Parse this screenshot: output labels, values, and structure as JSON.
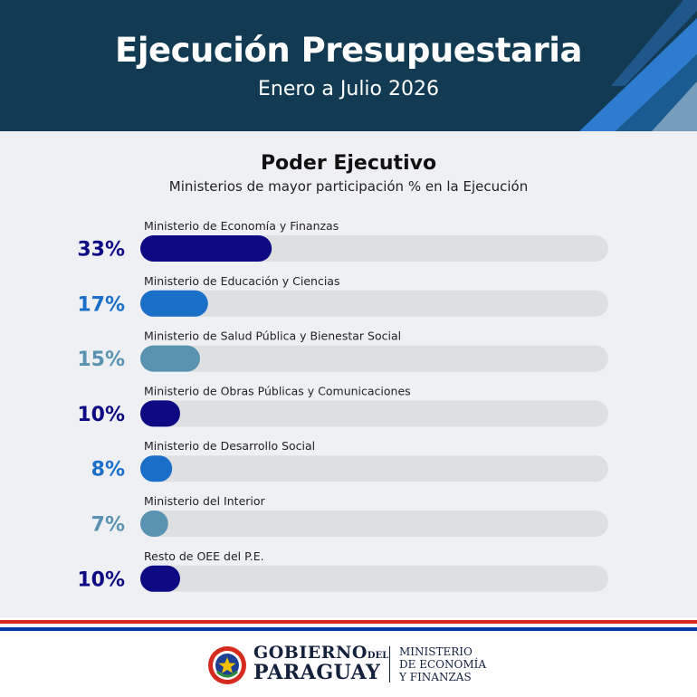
{
  "header": {
    "title": "Ejecución Presupuestaria",
    "subtitle": "Enero a Julio 2026"
  },
  "section": {
    "title": "Poder Ejecutivo",
    "subtitle": "Ministerios de mayor participación % en la Ejecución"
  },
  "chart_data": {
    "type": "bar",
    "orientation": "horizontal",
    "title": "Poder Ejecutivo",
    "subtitle": "Ministerios de mayor participación % en la Ejecución",
    "unit": "%",
    "xlim": [
      0,
      100
    ],
    "categories": [
      "Ministerio de Economía y Finanzas",
      "Ministerio de Educación y Ciencias",
      "Ministerio de Salud Pública y Bienestar Social",
      "Ministerio de Obras Públicas y Comunicaciones",
      "Ministerio de Desarrollo Social",
      "Ministerio del Interior",
      "Resto de OEE del P.E."
    ],
    "values": [
      33,
      17,
      15,
      10,
      8,
      7,
      10
    ],
    "value_labels": [
      "33%",
      "17%",
      "15%",
      "10%",
      "8%",
      "7%",
      "10%"
    ],
    "colors": [
      "#0d0a84",
      "#1a6fc8",
      "#5a92b2",
      "#0d0a84",
      "#1a6fc8",
      "#5a92b2",
      "#0d0a84"
    ],
    "track_color": "#dedfe1"
  },
  "footer": {
    "logo_line1": "GOBIERNO",
    "logo_line1_small": "DEL",
    "logo_line2": "PARAGUAY",
    "ministry_lines": [
      "MINISTERIO",
      "DE ECONOMÍA",
      "Y FINANZAS"
    ]
  },
  "colors": {
    "header_bg": "#123a52",
    "panel_bg": "#eef0f3",
    "flag_red": "#d52b1e",
    "flag_blue": "#0038a8",
    "accent_blue": "#2f7fd6"
  },
  "icons": {
    "seal": "paraguay-seal-icon",
    "header_decoration": "diagonal-stripes"
  }
}
